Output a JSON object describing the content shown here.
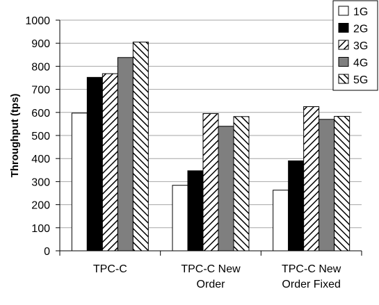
{
  "chart_data": {
    "type": "bar",
    "title": "",
    "xlabel": "",
    "ylabel": "Throughput (tps)",
    "ylim": [
      0,
      1000
    ],
    "yticks": [
      0,
      100,
      200,
      300,
      400,
      500,
      600,
      700,
      800,
      900,
      1000
    ],
    "categories": [
      [
        "TPC-C"
      ],
      [
        "TPC-C New",
        "Order"
      ],
      [
        "TPC-C New",
        "Order Fixed"
      ]
    ],
    "series": [
      {
        "name": "1G",
        "values": [
          597,
          284,
          263
        ],
        "pattern": "white"
      },
      {
        "name": "2G",
        "values": [
          752,
          347,
          390
        ],
        "pattern": "black"
      },
      {
        "name": "3G",
        "values": [
          768,
          595,
          625
        ],
        "pattern": "hatch-up"
      },
      {
        "name": "4G",
        "values": [
          838,
          540,
          570
        ],
        "pattern": "gray"
      },
      {
        "name": "5G",
        "values": [
          905,
          582,
          583
        ],
        "pattern": "hatch-down"
      }
    ],
    "grid": true,
    "legend_position": "top-right",
    "colors": {
      "gray": "#7f7f7f",
      "black": "#000000",
      "grid": "#a6a6a6"
    }
  }
}
